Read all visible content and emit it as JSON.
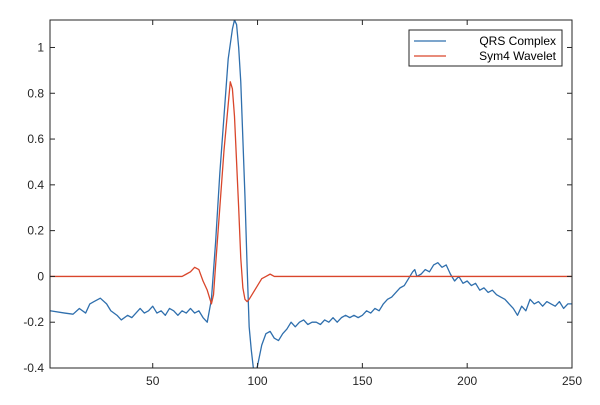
{
  "chart_data": {
    "type": "line",
    "xlim": [
      1,
      250
    ],
    "ylim": [
      -0.4,
      1.12
    ],
    "x_ticks": [
      50,
      100,
      150,
      200,
      250
    ],
    "y_ticks": [
      -0.4,
      -0.2,
      0,
      0.2,
      0.4,
      0.6,
      0.8,
      1
    ],
    "legend_placement": "top-right",
    "grid": false,
    "series": [
      {
        "name": "QRS Complex",
        "color": "#2f6fad",
        "points": [
          [
            1,
            -0.15
          ],
          [
            8,
            -0.16
          ],
          [
            12,
            -0.165
          ],
          [
            15,
            -0.14
          ],
          [
            18,
            -0.16
          ],
          [
            20,
            -0.12
          ],
          [
            22,
            -0.11
          ],
          [
            25,
            -0.095
          ],
          [
            28,
            -0.12
          ],
          [
            30,
            -0.15
          ],
          [
            33,
            -0.17
          ],
          [
            35,
            -0.19
          ],
          [
            38,
            -0.17
          ],
          [
            40,
            -0.18
          ],
          [
            42,
            -0.16
          ],
          [
            44,
            -0.14
          ],
          [
            46,
            -0.16
          ],
          [
            48,
            -0.15
          ],
          [
            50,
            -0.13
          ],
          [
            52,
            -0.16
          ],
          [
            54,
            -0.15
          ],
          [
            56,
            -0.17
          ],
          [
            58,
            -0.14
          ],
          [
            60,
            -0.15
          ],
          [
            62,
            -0.17
          ],
          [
            64,
            -0.15
          ],
          [
            66,
            -0.16
          ],
          [
            68,
            -0.14
          ],
          [
            70,
            -0.16
          ],
          [
            72,
            -0.15
          ],
          [
            74,
            -0.18
          ],
          [
            76,
            -0.2
          ],
          [
            78,
            -0.1
          ],
          [
            80,
            0.15
          ],
          [
            82,
            0.45
          ],
          [
            84,
            0.7
          ],
          [
            86,
            0.95
          ],
          [
            88,
            1.08
          ],
          [
            89,
            1.12
          ],
          [
            90,
            1.1
          ],
          [
            91,
            1.0
          ],
          [
            92,
            0.85
          ],
          [
            93,
            0.6
          ],
          [
            94,
            0.35
          ],
          [
            95,
            0.05
          ],
          [
            96,
            -0.22
          ],
          [
            97,
            -0.32
          ],
          [
            98,
            -0.4
          ],
          [
            99,
            -0.42
          ],
          [
            100,
            -0.39
          ],
          [
            102,
            -0.3
          ],
          [
            104,
            -0.25
          ],
          [
            106,
            -0.24
          ],
          [
            108,
            -0.27
          ],
          [
            110,
            -0.28
          ],
          [
            112,
            -0.25
          ],
          [
            114,
            -0.23
          ],
          [
            116,
            -0.2
          ],
          [
            118,
            -0.22
          ],
          [
            120,
            -0.2
          ],
          [
            122,
            -0.19
          ],
          [
            124,
            -0.21
          ],
          [
            126,
            -0.2
          ],
          [
            128,
            -0.2
          ],
          [
            130,
            -0.21
          ],
          [
            132,
            -0.19
          ],
          [
            134,
            -0.2
          ],
          [
            136,
            -0.18
          ],
          [
            138,
            -0.2
          ],
          [
            140,
            -0.18
          ],
          [
            142,
            -0.17
          ],
          [
            144,
            -0.18
          ],
          [
            146,
            -0.17
          ],
          [
            148,
            -0.18
          ],
          [
            150,
            -0.17
          ],
          [
            152,
            -0.15
          ],
          [
            154,
            -0.16
          ],
          [
            156,
            -0.14
          ],
          [
            158,
            -0.15
          ],
          [
            160,
            -0.12
          ],
          [
            162,
            -0.1
          ],
          [
            164,
            -0.09
          ],
          [
            166,
            -0.07
          ],
          [
            168,
            -0.05
          ],
          [
            170,
            -0.04
          ],
          [
            172,
            -0.01
          ],
          [
            174,
            0.02
          ],
          [
            175,
            0.03
          ],
          [
            176,
            0.0
          ],
          [
            178,
            0.01
          ],
          [
            180,
            0.03
          ],
          [
            182,
            0.02
          ],
          [
            184,
            0.05
          ],
          [
            186,
            0.06
          ],
          [
            188,
            0.04
          ],
          [
            190,
            0.05
          ],
          [
            192,
            0.01
          ],
          [
            194,
            -0.02
          ],
          [
            196,
            0.0
          ],
          [
            198,
            -0.03
          ],
          [
            200,
            -0.02
          ],
          [
            202,
            -0.04
          ],
          [
            204,
            -0.03
          ],
          [
            206,
            -0.06
          ],
          [
            208,
            -0.05
          ],
          [
            210,
            -0.07
          ],
          [
            212,
            -0.06
          ],
          [
            214,
            -0.08
          ],
          [
            216,
            -0.09
          ],
          [
            218,
            -0.1
          ],
          [
            220,
            -0.12
          ],
          [
            222,
            -0.14
          ],
          [
            224,
            -0.17
          ],
          [
            226,
            -0.13
          ],
          [
            228,
            -0.15
          ],
          [
            230,
            -0.1
          ],
          [
            232,
            -0.12
          ],
          [
            234,
            -0.11
          ],
          [
            236,
            -0.13
          ],
          [
            238,
            -0.11
          ],
          [
            240,
            -0.12
          ],
          [
            242,
            -0.13
          ],
          [
            244,
            -0.11
          ],
          [
            246,
            -0.14
          ],
          [
            248,
            -0.12
          ],
          [
            250,
            -0.12
          ]
        ]
      },
      {
        "name": "Sym4 Wavelet",
        "color": "#d9462b",
        "points": [
          [
            1,
            0
          ],
          [
            60,
            0
          ],
          [
            64,
            0.0
          ],
          [
            66,
            0.01
          ],
          [
            68,
            0.02
          ],
          [
            70,
            0.04
          ],
          [
            72,
            0.03
          ],
          [
            74,
            -0.02
          ],
          [
            76,
            -0.06
          ],
          [
            78,
            -0.12
          ],
          [
            79,
            -0.08
          ],
          [
            80,
            0.05
          ],
          [
            82,
            0.3
          ],
          [
            84,
            0.55
          ],
          [
            86,
            0.75
          ],
          [
            87,
            0.85
          ],
          [
            88,
            0.82
          ],
          [
            89,
            0.7
          ],
          [
            90,
            0.5
          ],
          [
            91,
            0.3
          ],
          [
            92,
            0.08
          ],
          [
            93,
            -0.05
          ],
          [
            94,
            -0.1
          ],
          [
            95,
            -0.11
          ],
          [
            96,
            -0.1
          ],
          [
            98,
            -0.07
          ],
          [
            100,
            -0.04
          ],
          [
            102,
            -0.01
          ],
          [
            104,
            0.0
          ],
          [
            106,
            0.01
          ],
          [
            108,
            0.0
          ],
          [
            110,
            0
          ],
          [
            250,
            0
          ]
        ]
      }
    ]
  }
}
